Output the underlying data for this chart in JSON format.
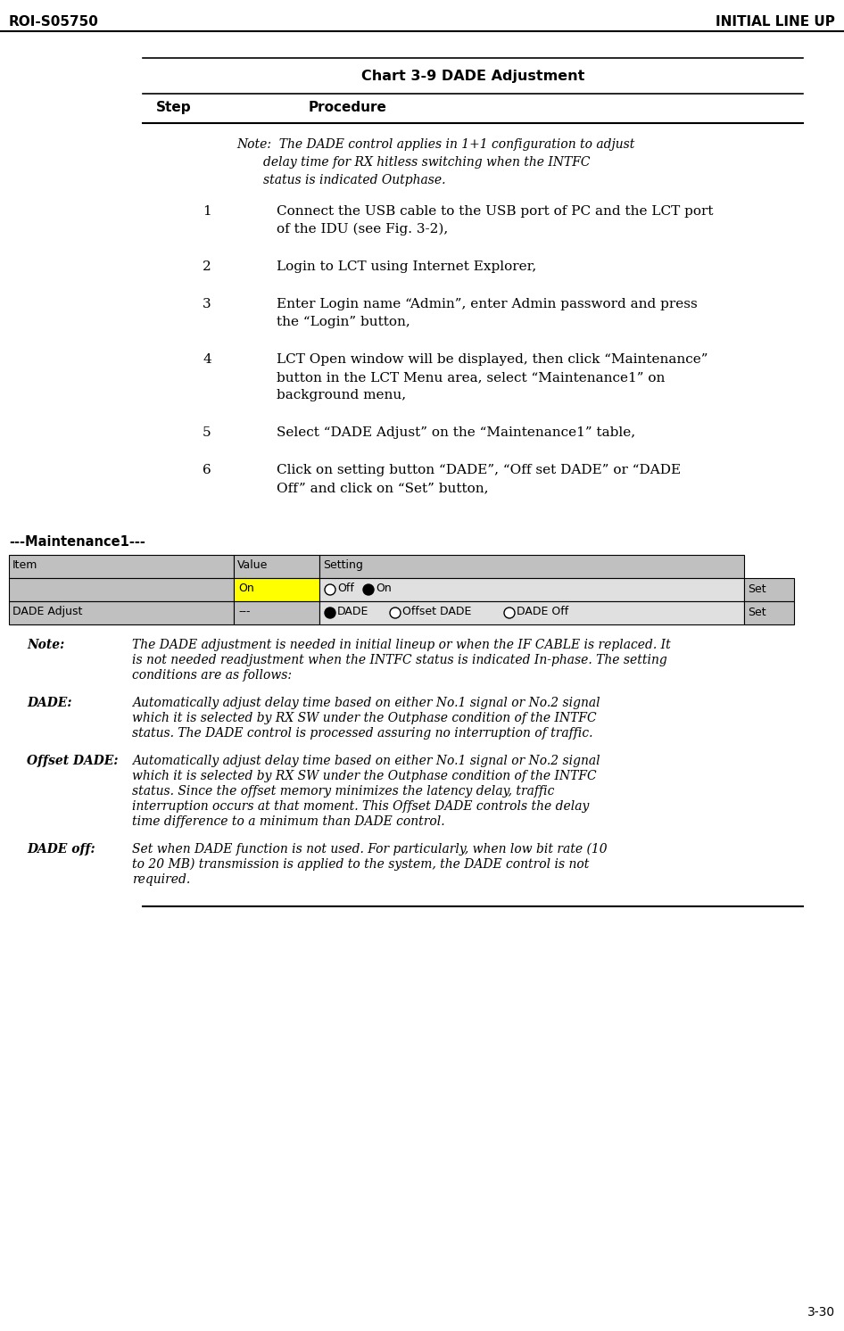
{
  "header_left": "ROI-S05750",
  "header_right": "INITIAL LINE UP",
  "footer_right": "3-30",
  "chart_title": "Chart 3-9 DADE Adjustment",
  "col_step": "Step",
  "col_procedure": "Procedure",
  "bg_color": "#ffffff",
  "table_header_bg": "#c0c0c0",
  "table_row1_value_bg": "#ffff00",
  "table_setting_bg": "#e0e0e0",
  "maintenance_label": "---Maintenance1---"
}
